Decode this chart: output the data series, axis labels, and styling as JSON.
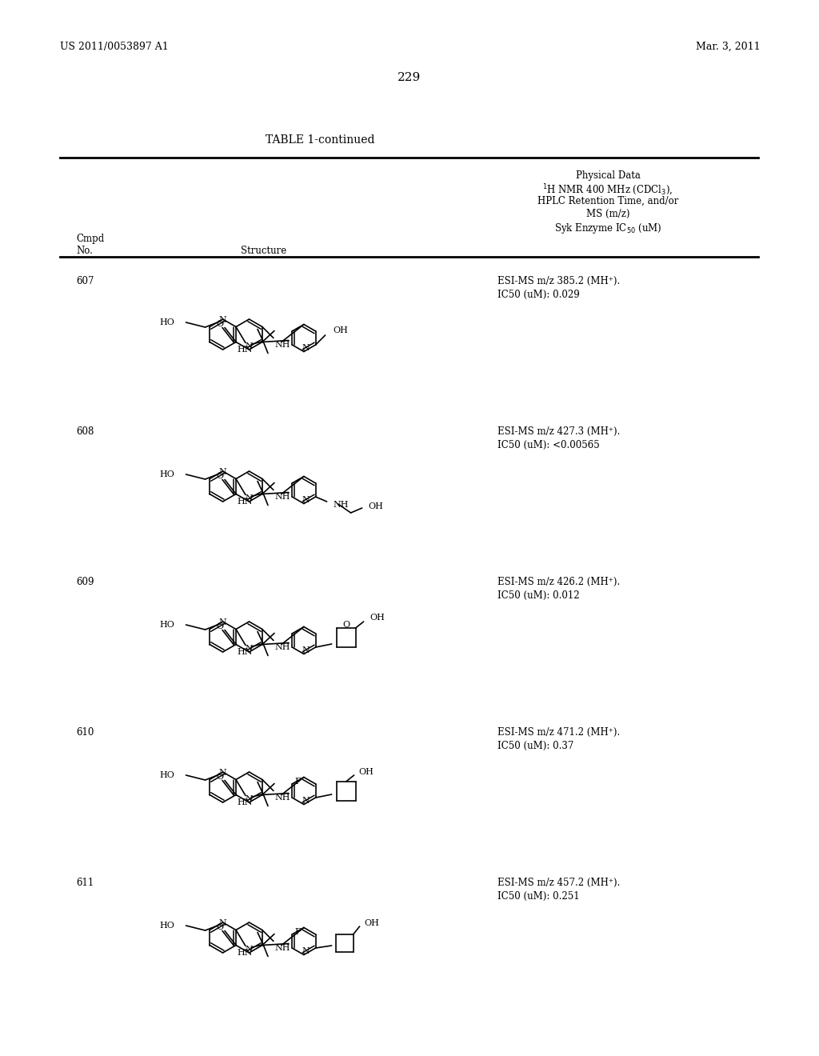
{
  "patent_number": "US 2011/0053897 A1",
  "patent_date": "Mar. 3, 2011",
  "page_number": "229",
  "table_title": "TABLE 1-continued",
  "col_header_lines": [
    "Physical Data",
    "^1H NMR 400 MHz (CDCl_3),",
    "HPLC Retention Time, and/or",
    "MS (m/z)",
    "Syk Enzyme IC_50 (uM)"
  ],
  "cmpd_label": "Cmpd",
  "no_label": "No.",
  "structure_label": "Structure",
  "compounds": [
    {
      "id": "607",
      "d1": "ESI-MS m/z 385.2 (MH⁺).",
      "d2": "IC50 (uM): 0.029"
    },
    {
      "id": "608",
      "d1": "ESI-MS m/z 427.3 (MH⁺).",
      "d2": "IC50 (uM): <0.00565"
    },
    {
      "id": "609",
      "d1": "ESI-MS m/z 426.2 (MH⁺).",
      "d2": "IC50 (uM): 0.012"
    },
    {
      "id": "610",
      "d1": "ESI-MS m/z 471.2 (MH⁺).",
      "d2": "IC50 (uM): 0.37"
    },
    {
      "id": "611",
      "d1": "ESI-MS m/z 457.2 (MH⁺).",
      "d2": "IC50 (uM): 0.251"
    }
  ],
  "row_tops": [
    330,
    518,
    706,
    894,
    1082
  ]
}
